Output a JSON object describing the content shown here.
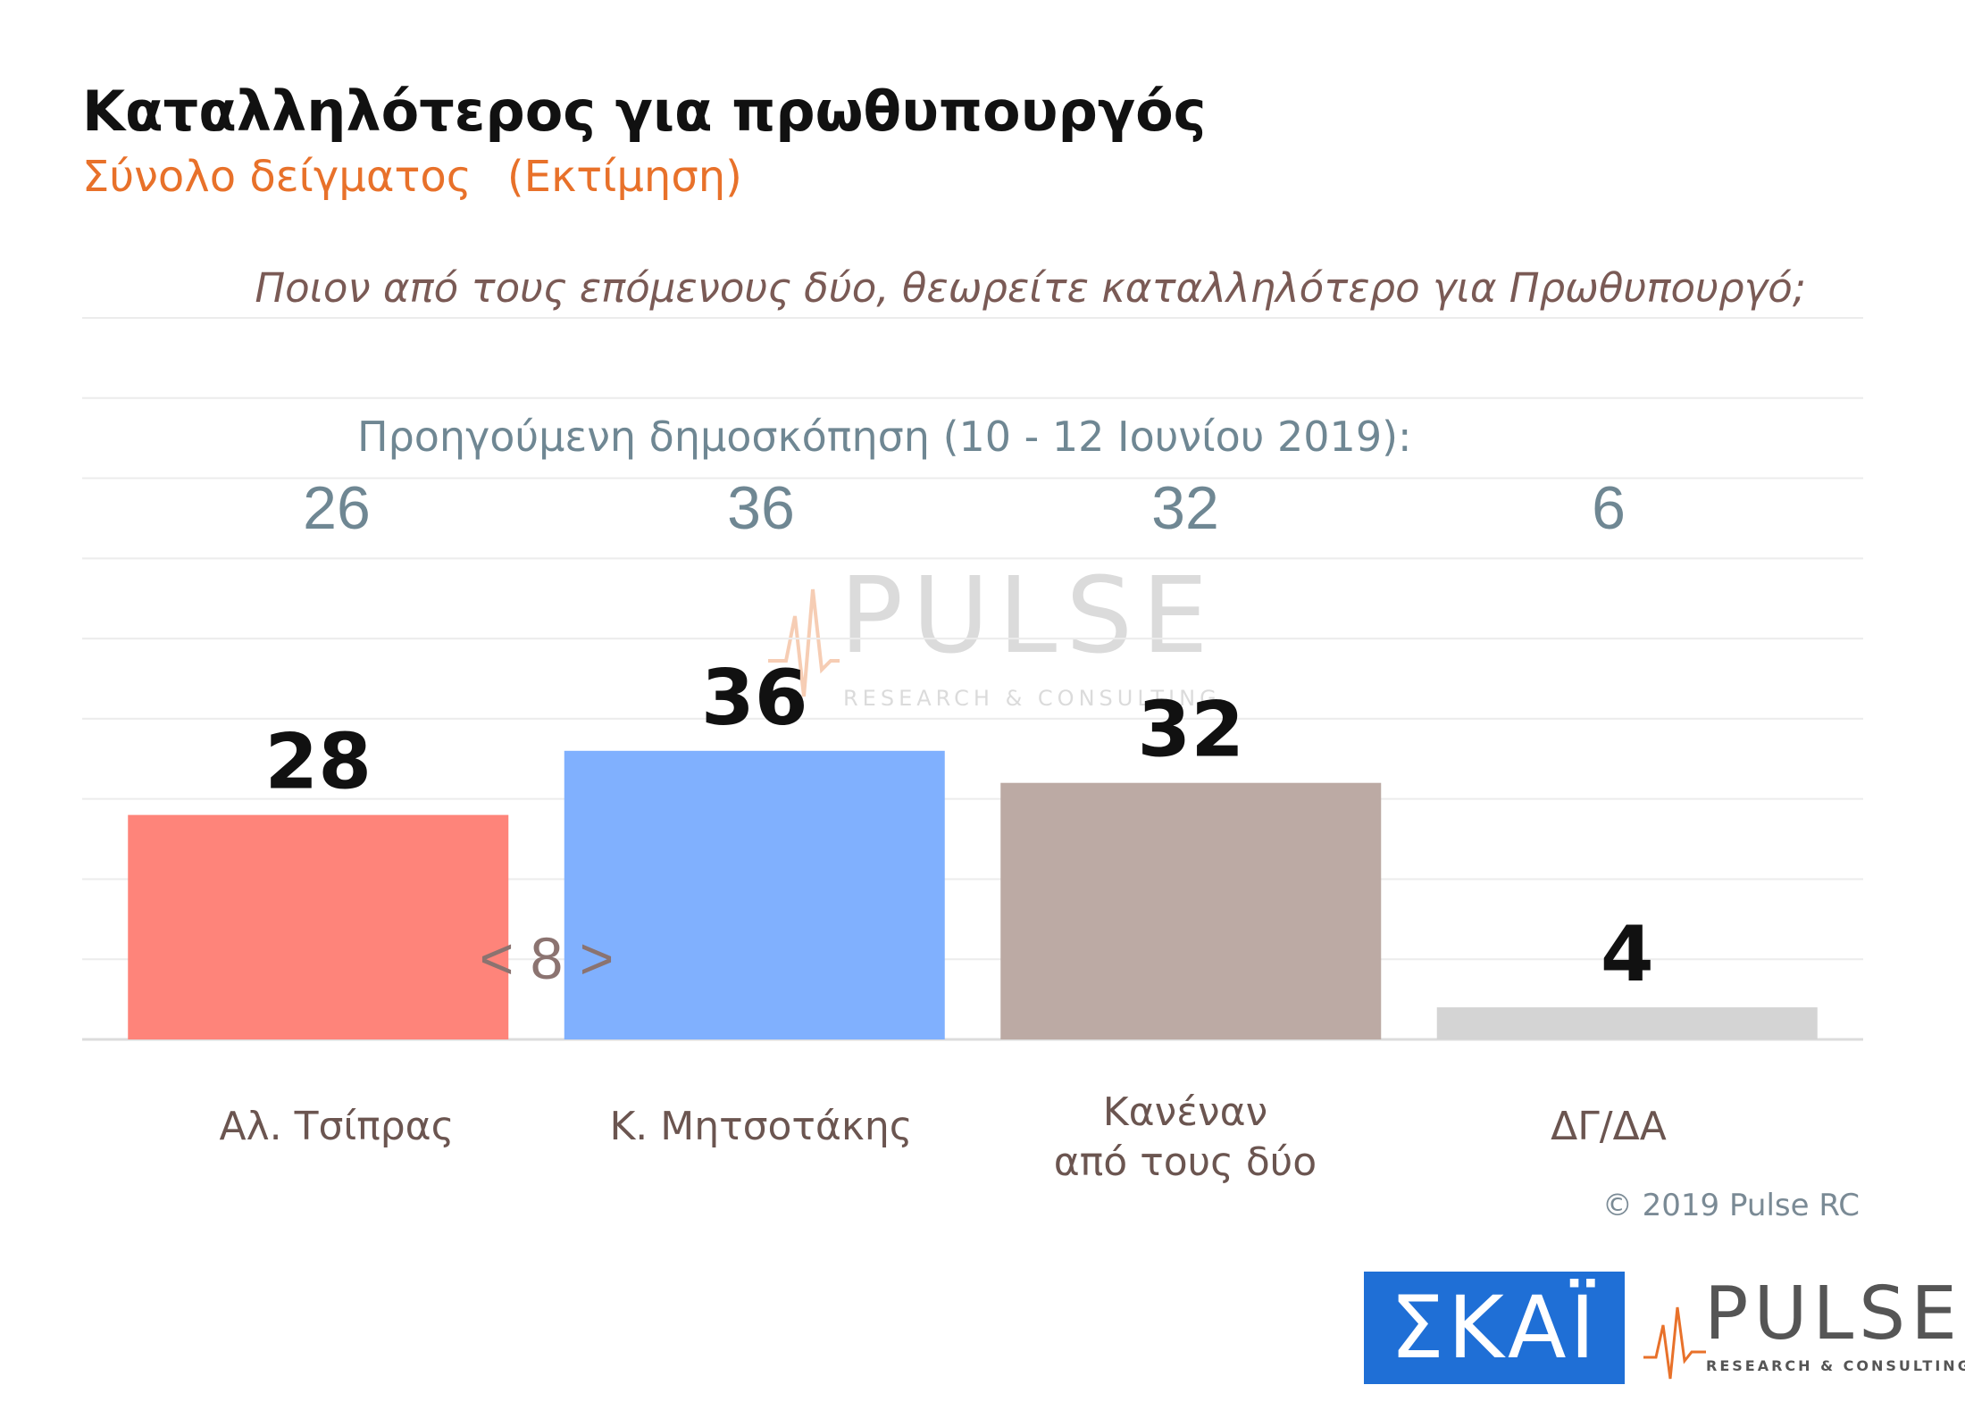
{
  "header": {
    "title": "Καταλληλότερος για πρωθυπουργός",
    "subtitle_sample": "Σύνολο δείγματος",
    "subtitle_estimate": "(Εκτίμηση)",
    "question": "Ποιον από τους επόμενους δύο, θεωρείτε καταλληλότερο για Πρωθυπουργό;"
  },
  "previous_poll": {
    "label": "Προηγούμενη δημοσκόπηση (10 - 12 Ιουνίου 2019):",
    "values": [
      "26",
      "36",
      "32",
      "6"
    ]
  },
  "gap_annotation": "< 8 >",
  "copyright": "© 2019 Pulse RC",
  "logos": {
    "skai": "ΣΚΑΪ",
    "pulse": "PULSE",
    "pulse_tagline": "RESEARCH & CONSULTING"
  },
  "watermark": {
    "word": "PULSE",
    "tagline": "RESEARCH & CONSULTING"
  },
  "colors": {
    "title": "#111111",
    "subtitle": "#e8712a",
    "previous": "#6f8793",
    "skai_blue": "#1f6fd6"
  },
  "chart_data": {
    "type": "bar",
    "categories": [
      [
        "Αλ. Τσίπρας"
      ],
      [
        "Κ. Μητσοτάκης"
      ],
      [
        "Κανέναν",
        "από τους δύο"
      ],
      [
        "ΔΓ/ΔΑ"
      ]
    ],
    "values": [
      28,
      36,
      32,
      4
    ],
    "colors": [
      "#fe847a",
      "#80b0fe",
      "#bcaaa4",
      "#d4d4d4"
    ],
    "ylim": [
      0,
      90
    ],
    "grid": true
  }
}
